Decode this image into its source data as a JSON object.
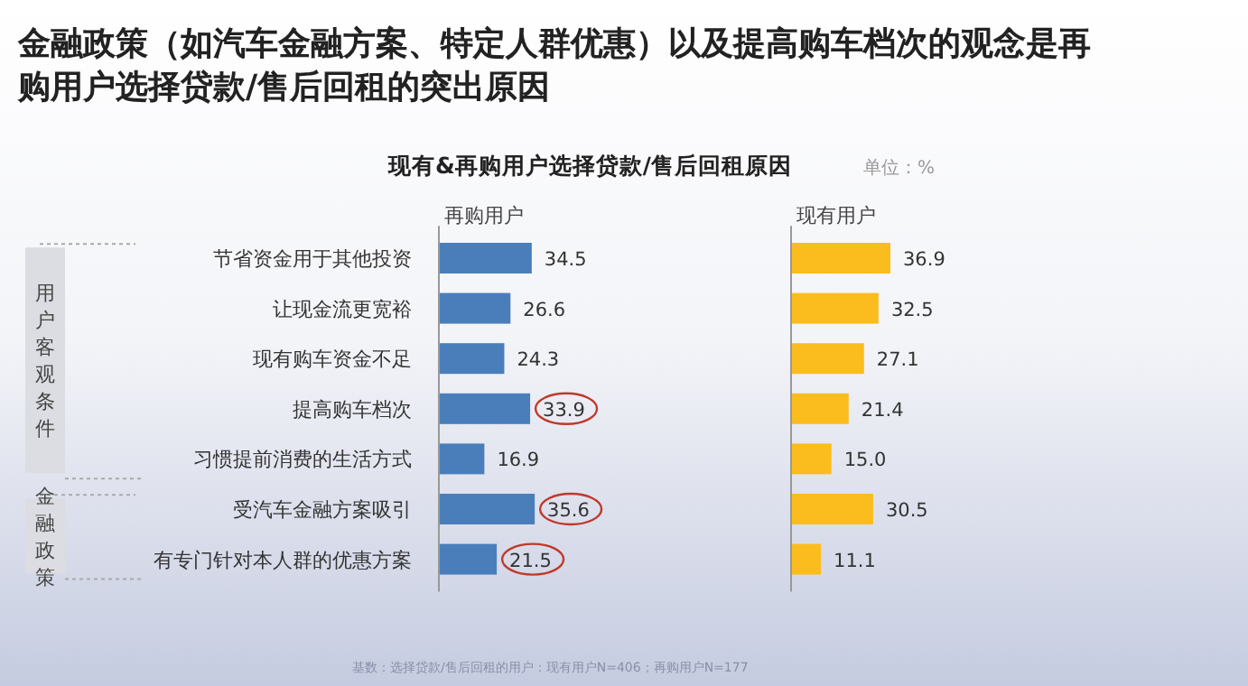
{
  "chart_data": [
    {
      "type": "other",
      "title": "金融政策（如汽车金融方案、特定人群优惠）以及提高购车档次的观念是再购用户选择贷款/售后回租的突出原因",
      "subtitle": "现有&再购用户选择贷款/售后回租原因",
      "annotations": [
        "单位：%",
        "基数：选择贷款/售后回租的用户：现有用户N=406；再购用户N=177"
      ]
    },
    {
      "type": "bar",
      "orientation": "horizontal",
      "title": "再购用户",
      "categories": [
        "节省资金用于其他投资",
        "让现金流更宽裕",
        "现有购车资金不足",
        "提高购车档次",
        "习惯提前消费的生活方式",
        "受汽车金融方案吸引",
        "有专门针对本人群的优惠方案"
      ],
      "values": [
        34.5,
        26.6,
        24.3,
        33.9,
        16.9,
        35.6,
        21.5
      ],
      "color": "#4a7ebb",
      "data_labels": true,
      "annotations": [
        "用户客观条件",
        "金融政策"
      ]
    },
    {
      "type": "bar",
      "orientation": "horizontal",
      "title": "现有用户",
      "categories": [
        null,
        null,
        null,
        null,
        null,
        null,
        null
      ],
      "values": [
        36.9,
        32.5,
        27.1,
        21.4,
        15.0,
        30.5,
        11.1
      ],
      "value_labels": [
        "36.9",
        "32.5",
        "27.1",
        "21.4",
        "15.0",
        "30.5",
        "11.1"
      ],
      "color": "#fbbd1e"
    }
  ]
}
